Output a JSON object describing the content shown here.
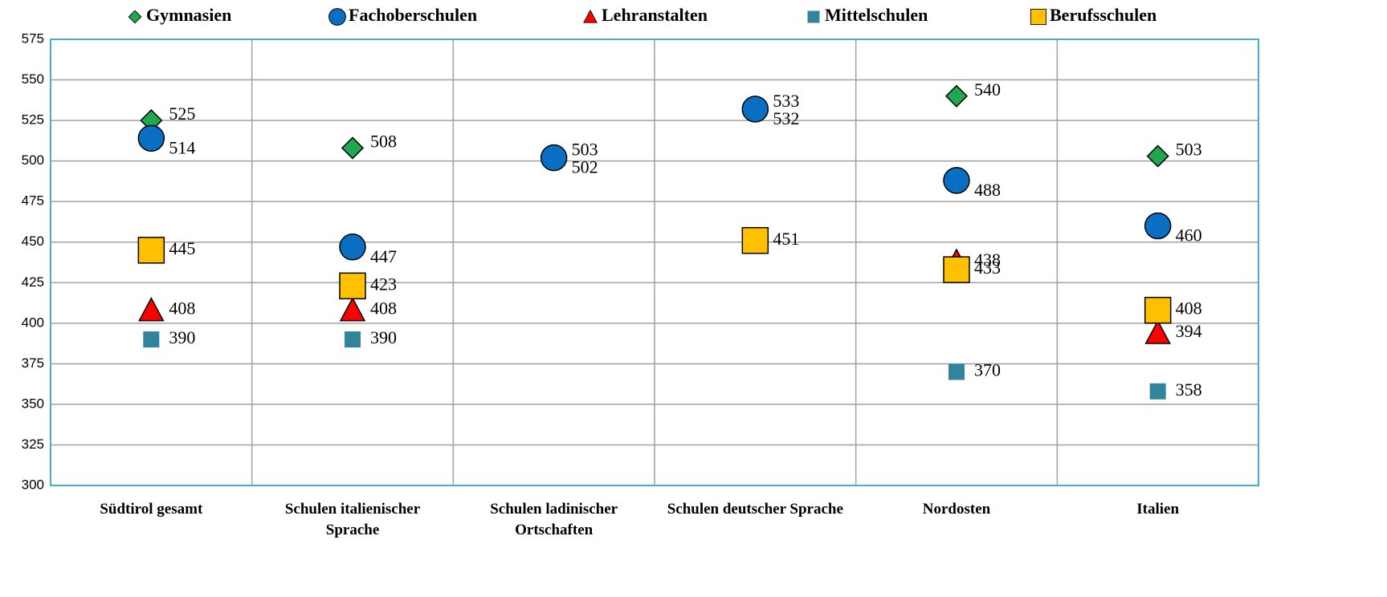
{
  "chart_data": {
    "type": "dot",
    "categories": [
      "Südtirol gesamt",
      "Schulen italienischer Sprache",
      "Schulen ladinischer Ortschaften",
      "Schulen deutscher Sprache",
      "Nordosten",
      "Italien"
    ],
    "series": [
      {
        "name": "Gymnasien",
        "color": "#1fa84f",
        "marker": "diamond",
        "values": [
          525,
          508,
          503,
          533,
          540,
          503
        ]
      },
      {
        "name": "Fachoberschulen",
        "color": "#0a6fc2",
        "marker": "circle",
        "values": [
          514,
          447,
          502,
          532,
          488,
          460
        ]
      },
      {
        "name": "Lehranstalten",
        "color": "#ff0000",
        "marker": "triangle",
        "values": [
          408,
          408,
          null,
          null,
          438,
          394
        ]
      },
      {
        "name": "Mittelschulen",
        "color": "#31849b",
        "marker": "small-square",
        "values": [
          390,
          390,
          null,
          null,
          370,
          358
        ]
      },
      {
        "name": "Berufsschulen",
        "color": "#ffc000",
        "marker": "square",
        "values": [
          445,
          423,
          null,
          451,
          433,
          408
        ]
      }
    ],
    "ylim": [
      300,
      575
    ],
    "yticks": [
      300,
      325,
      350,
      375,
      400,
      425,
      450,
      475,
      500,
      525,
      550,
      575
    ],
    "grid": true,
    "legend": "top"
  }
}
